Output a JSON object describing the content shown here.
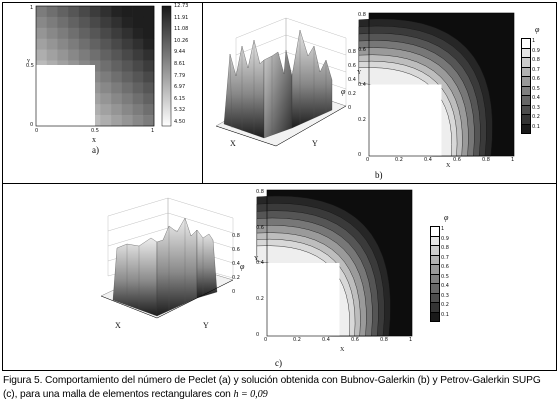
{
  "figure": {
    "caption_prefix": "Figura 5.",
    "caption_text": "Comportamiento del número de Peclet (a) y solución obtenida con Bubnov-Galerkin (b) y Petrov-Galerkin SUPG (c), para una malla de elementos rectangulares con ",
    "caption_math": "h = 0,09",
    "panel_labels": [
      "a)",
      "b)",
      "c)"
    ]
  },
  "chart_data": [
    {
      "type": "heatmap",
      "panel": "a)",
      "xlabel": "x",
      "ylabel": "y",
      "x_ticks": [
        "0",
        "0.5",
        "1"
      ],
      "y_ticks": [
        "0",
        "0.5",
        "1"
      ],
      "colorbar_ticks": [
        "12.73",
        "11.91",
        "11.08",
        "10.26",
        "9.44",
        "8.61",
        "7.79",
        "6.97",
        "6.15",
        "5.32",
        "4.50"
      ]
    },
    {
      "type": "surface",
      "panel": "b) left",
      "zlabel": "φ",
      "x_label": "X",
      "y_label": "Y",
      "z_ticks": [
        "0",
        "0.2",
        "0.4",
        "0.6",
        "0.8"
      ]
    },
    {
      "type": "contour",
      "panel": "b) right",
      "xlabel": "X",
      "ylabel": "Y",
      "x_ticks": [
        "0",
        "0.2",
        "0.4",
        "0.6",
        "0.8",
        "1"
      ],
      "y_ticks": [
        "0",
        "0.2",
        "0.4",
        "0.6",
        "0.8"
      ],
      "legend_title": "φ",
      "legend_levels": [
        "1",
        "0.9",
        "0.8",
        "0.7",
        "0.6",
        "0.5",
        "0.4",
        "0.3",
        "0.2",
        "0.1"
      ]
    },
    {
      "type": "surface",
      "panel": "c) left",
      "zlabel": "φ",
      "x_label": "X",
      "y_label": "Y",
      "z_ticks": [
        "0",
        "0.2",
        "0.4",
        "0.6",
        "0.8"
      ]
    },
    {
      "type": "contour",
      "panel": "c) right",
      "xlabel": "X",
      "ylabel": "Y",
      "x_ticks": [
        "0",
        "0.2",
        "0.4",
        "0.6",
        "0.8",
        "1"
      ],
      "y_ticks": [
        "0",
        "0.2",
        "0.4",
        "0.6",
        "0.8"
      ],
      "legend_title": "φ",
      "legend_levels": [
        "1",
        "0.9",
        "0.8",
        "0.7",
        "0.6",
        "0.5",
        "0.4",
        "0.3",
        "0.2",
        "0.1"
      ]
    }
  ]
}
